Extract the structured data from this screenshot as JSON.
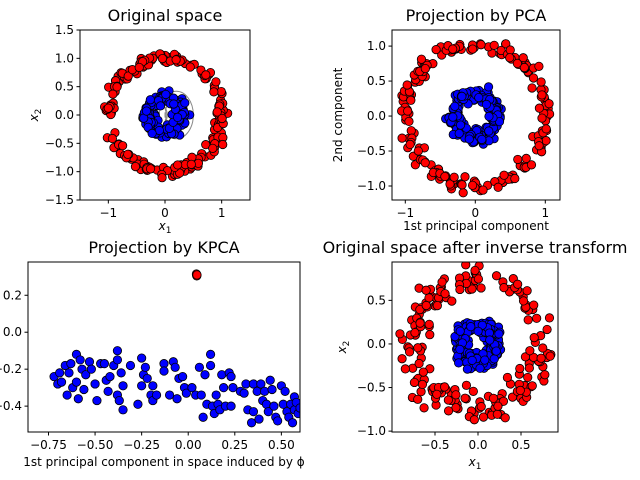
{
  "chart_data": [
    {
      "type": "scatter",
      "title": "Original space",
      "xlabel": "x1",
      "ylabel": "x2",
      "xlim": [
        -1.5,
        1.5
      ],
      "ylim": [
        -1.5,
        1.5
      ],
      "xticks": [
        -1,
        0,
        1
      ],
      "xtick_labels": [
        "−1",
        "0",
        "1"
      ],
      "yticks": [
        -1.5,
        -1.0,
        -0.5,
        0.0,
        0.5,
        1.0,
        1.5
      ],
      "ytick_labels": [
        "−1.5",
        "−1.0",
        "−0.5",
        "0.0",
        "0.5",
        "1.0",
        "1.5"
      ],
      "grid": false,
      "contours": true,
      "series": [
        {
          "color": "#ff0000",
          "ring": {
            "radius": 1.0,
            "noise": 0.05,
            "count": 200
          }
        },
        {
          "color": "#0000ff",
          "ring": {
            "radius": 0.3,
            "noise": 0.05,
            "count": 200
          }
        }
      ]
    },
    {
      "type": "scatter",
      "title": "Projection by PCA",
      "xlabel": "1st principal component",
      "ylabel": "2nd component",
      "xlim": [
        -1.19,
        1.21
      ],
      "ylim": [
        -1.2,
        1.23
      ],
      "xticks": [
        -1,
        0,
        1
      ],
      "xtick_labels": [
        "−1",
        "0",
        "1"
      ],
      "yticks": [
        -1.0,
        -0.5,
        0.0,
        0.5,
        1.0
      ],
      "ytick_labels": [
        "−1.0",
        "−0.5",
        "0.0",
        "0.5",
        "1.0"
      ],
      "grid": false,
      "series": [
        {
          "color": "#ff0000",
          "ring": {
            "radius": 1.0,
            "noise": 0.05,
            "count": 200
          }
        },
        {
          "color": "#0000ff",
          "ring": {
            "radius": 0.3,
            "noise": 0.05,
            "count": 200
          }
        }
      ]
    },
    {
      "type": "scatter",
      "title": "Projection by KPCA",
      "xlabel": "1st principal component in space induced by ϕ",
      "ylabel": "",
      "xlim": [
        -0.86,
        0.6
      ],
      "ylim": [
        -0.54,
        0.38
      ],
      "xticks": [
        -0.75,
        -0.5,
        -0.25,
        0.0,
        0.25,
        0.5
      ],
      "xtick_labels": [
        "−0.75",
        "−0.50",
        "−0.25",
        "0.00",
        "0.25",
        "0.50"
      ],
      "yticks": [
        -0.4,
        -0.2,
        0.0,
        0.2
      ],
      "ytick_labels": [
        "−0.4",
        "−0.2",
        "0.0",
        "0.2"
      ],
      "grid": false,
      "series": [
        {
          "color": "#ff0000",
          "points": [
            [
              0.045,
              0.31
            ],
            [
              0.046,
              0.305
            ],
            [
              0.044,
              0.315
            ],
            [
              0.047,
              0.31
            ]
          ]
        },
        {
          "color": "#0000ff",
          "points": [
            [
              -0.72,
              -0.24
            ],
            [
              -0.7,
              -0.28
            ],
            [
              -0.69,
              -0.22
            ],
            [
              -0.68,
              -0.27
            ],
            [
              -0.66,
              -0.18
            ],
            [
              -0.65,
              -0.34
            ],
            [
              -0.64,
              -0.22
            ],
            [
              -0.63,
              -0.17
            ],
            [
              -0.62,
              -0.3
            ],
            [
              -0.6,
              -0.12
            ],
            [
              -0.6,
              -0.27
            ],
            [
              -0.59,
              -0.36
            ],
            [
              -0.58,
              -0.15
            ],
            [
              -0.57,
              -0.2
            ],
            [
              -0.56,
              -0.31
            ],
            [
              -0.55,
              -0.23
            ],
            [
              -0.53,
              -0.16
            ],
            [
              -0.52,
              -0.2
            ],
            [
              -0.5,
              -0.28
            ],
            [
              -0.49,
              -0.37
            ],
            [
              -0.47,
              -0.17
            ],
            [
              -0.45,
              -0.17
            ],
            [
              -0.44,
              -0.26
            ],
            [
              -0.43,
              -0.32
            ],
            [
              -0.42,
              -0.24
            ],
            [
              -0.4,
              -0.18
            ],
            [
              -0.38,
              -0.1
            ],
            [
              -0.38,
              -0.15
            ],
            [
              -0.38,
              -0.34
            ],
            [
              -0.37,
              -0.37
            ],
            [
              -0.36,
              -0.22
            ],
            [
              -0.35,
              -0.29
            ],
            [
              -0.35,
              -0.42
            ],
            [
              -0.31,
              -0.18
            ],
            [
              -0.27,
              -0.39
            ],
            [
              -0.25,
              -0.14
            ],
            [
              -0.25,
              -0.29
            ],
            [
              -0.24,
              -0.23
            ],
            [
              -0.23,
              -0.19
            ],
            [
              -0.22,
              -0.25
            ],
            [
              -0.2,
              -0.34
            ],
            [
              -0.19,
              -0.29
            ],
            [
              -0.19,
              -0.37
            ],
            [
              -0.17,
              -0.34
            ],
            [
              -0.13,
              -0.17
            ],
            [
              -0.13,
              -0.21
            ],
            [
              -0.1,
              -0.34
            ],
            [
              -0.08,
              -0.16
            ],
            [
              -0.07,
              -0.19
            ],
            [
              -0.06,
              -0.36
            ],
            [
              -0.05,
              -0.25
            ],
            [
              -0.03,
              -0.24
            ],
            [
              -0.02,
              -0.3
            ],
            [
              -0.01,
              -0.33
            ],
            [
              0.02,
              -0.3
            ],
            [
              0.04,
              -0.34
            ],
            [
              0.06,
              -0.19
            ],
            [
              0.07,
              -0.34
            ],
            [
              0.08,
              -0.46
            ],
            [
              0.09,
              -0.23
            ],
            [
              0.1,
              -0.39
            ],
            [
              0.12,
              -0.12
            ],
            [
              0.12,
              -0.18
            ],
            [
              0.13,
              -0.4
            ],
            [
              0.14,
              -0.44
            ],
            [
              0.15,
              -0.34
            ],
            [
              0.16,
              -0.39
            ],
            [
              0.17,
              -0.42
            ],
            [
              0.18,
              -0.23
            ],
            [
              0.19,
              -0.3
            ],
            [
              0.2,
              -0.4
            ],
            [
              0.22,
              -0.22
            ],
            [
              0.23,
              -0.24
            ],
            [
              0.23,
              -0.4
            ],
            [
              0.24,
              -0.3
            ],
            [
              0.28,
              -0.32
            ],
            [
              0.3,
              -0.33
            ],
            [
              0.31,
              -0.28
            ],
            [
              0.32,
              -0.42
            ],
            [
              0.34,
              -0.49
            ],
            [
              0.35,
              -0.28
            ],
            [
              0.35,
              -0.43
            ],
            [
              0.37,
              -0.32
            ],
            [
              0.38,
              -0.47
            ],
            [
              0.39,
              -0.28
            ],
            [
              0.4,
              -0.37
            ],
            [
              0.41,
              -0.32
            ],
            [
              0.42,
              -0.39
            ],
            [
              0.43,
              -0.43
            ],
            [
              0.44,
              -0.26
            ],
            [
              0.45,
              -0.31
            ],
            [
              0.46,
              -0.4
            ],
            [
              0.47,
              -0.46
            ],
            [
              0.48,
              -0.48
            ],
            [
              0.5,
              -0.29
            ],
            [
              0.51,
              -0.39
            ],
            [
              0.52,
              -0.32
            ],
            [
              0.53,
              -0.43
            ],
            [
              0.54,
              -0.46
            ],
            [
              0.55,
              -0.39
            ],
            [
              0.56,
              -0.49
            ],
            [
              0.57,
              -0.35
            ],
            [
              0.57,
              -0.42
            ],
            [
              0.58,
              -0.38
            ],
            [
              0.59,
              -0.44
            ],
            [
              0.6,
              -0.41
            ]
          ]
        }
      ]
    },
    {
      "type": "scatter",
      "title": "Original space after inverse transform",
      "xlabel": "x1",
      "ylabel": "x2",
      "xlim": [
        -1.0,
        0.93
      ],
      "ylim": [
        -1.01,
        0.94
      ],
      "xticks": [
        -0.5,
        0.0,
        0.5
      ],
      "xtick_labels": [
        "−0.5",
        "0.0",
        "0.5"
      ],
      "yticks": [
        -1.0,
        -0.5,
        0.0,
        0.5
      ],
      "ytick_labels": [
        "−1.0",
        "−0.5",
        "0.0",
        "0.5"
      ],
      "grid": false,
      "series": [
        {
          "color": "#ff0000",
          "ring": {
            "radius": 0.75,
            "noise": 0.09,
            "count": 200
          }
        },
        {
          "color": "#0000ff",
          "ring": {
            "radius": 0.2,
            "noise": 0.05,
            "count": 200
          }
        }
      ]
    }
  ]
}
